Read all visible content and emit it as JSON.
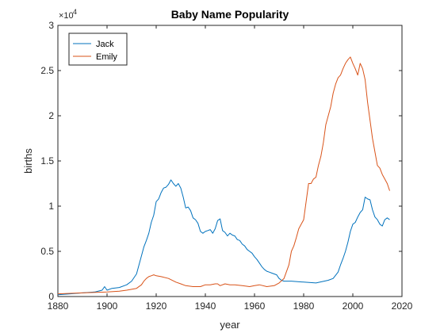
{
  "chart_data": {
    "type": "line",
    "title": "Baby Name Popularity",
    "xlabel": "year",
    "ylabel": "births",
    "xlim": [
      1880,
      2020
    ],
    "ylim": [
      0,
      30000
    ],
    "xticks": [
      1880,
      1900,
      1920,
      1940,
      1960,
      1980,
      2000,
      2020
    ],
    "yticks": [
      0,
      5000,
      10000,
      15000,
      20000,
      25000,
      30000
    ],
    "ytick_labels": [
      "0",
      "0.5",
      "1",
      "1.5",
      "2",
      "2.5",
      "3"
    ],
    "exponent_label": {
      "base": "×10",
      "power": "4"
    },
    "legend_position": "top-left",
    "grid": false,
    "series": [
      {
        "name": "Jack",
        "color": "#0072BD",
        "x": [
          1880,
          1885,
          1890,
          1895,
          1898,
          1899,
          1900,
          1902,
          1905,
          1908,
          1910,
          1912,
          1913,
          1914,
          1915,
          1916,
          1917,
          1918,
          1919,
          1920,
          1921,
          1922,
          1923,
          1924,
          1925,
          1926,
          1927,
          1928,
          1929,
          1930,
          1931,
          1932,
          1933,
          1934,
          1935,
          1936,
          1937,
          1938,
          1939,
          1940,
          1941,
          1942,
          1943,
          1944,
          1945,
          1946,
          1947,
          1948,
          1949,
          1950,
          1951,
          1952,
          1953,
          1954,
          1955,
          1956,
          1957,
          1958,
          1959,
          1960,
          1961,
          1962,
          1963,
          1964,
          1965,
          1966,
          1967,
          1968,
          1969,
          1970,
          1971,
          1972,
          1975,
          1980,
          1985,
          1990,
          1992,
          1994,
          1995,
          1996,
          1997,
          1998,
          1999,
          2000,
          2001,
          2002,
          2003,
          2004,
          2005,
          2006,
          2007,
          2008,
          2009,
          2010,
          2011,
          2012,
          2013,
          2014,
          2015
        ],
        "values": [
          200,
          300,
          400,
          500,
          700,
          1100,
          700,
          900,
          1000,
          1300,
          1700,
          2500,
          3500,
          4500,
          5500,
          6200,
          7000,
          8200,
          9000,
          10500,
          10800,
          11500,
          12000,
          12100,
          12400,
          12900,
          12500,
          12200,
          12500,
          12000,
          11000,
          9800,
          9900,
          9500,
          8700,
          8500,
          8100,
          7200,
          7000,
          7200,
          7300,
          7400,
          7000,
          7500,
          8400,
          8600,
          7300,
          7100,
          6700,
          7000,
          6800,
          6700,
          6300,
          6200,
          5800,
          5600,
          5200,
          5000,
          4800,
          4400,
          4100,
          3700,
          3300,
          3000,
          2800,
          2700,
          2600,
          2500,
          2400,
          2000,
          1800,
          1700,
          1700,
          1600,
          1500,
          1800,
          2000,
          2700,
          3500,
          4200,
          5000,
          6000,
          7200,
          8000,
          8200,
          8800,
          9300,
          9600,
          11000,
          10800,
          10700,
          9600,
          8800,
          8500,
          8000,
          7800,
          8500,
          8700,
          8500
        ]
      },
      {
        "name": "Emily",
        "color": "#D95319",
        "x": [
          1880,
          1890,
          1900,
          1905,
          1908,
          1910,
          1912,
          1914,
          1915,
          1916,
          1917,
          1918,
          1919,
          1920,
          1922,
          1925,
          1928,
          1930,
          1932,
          1935,
          1938,
          1940,
          1942,
          1944,
          1945,
          1946,
          1948,
          1950,
          1952,
          1955,
          1958,
          1960,
          1962,
          1965,
          1968,
          1970,
          1972,
          1974,
          1975,
          1976,
          1977,
          1978,
          1980,
          1981,
          1982,
          1983,
          1984,
          1985,
          1986,
          1987,
          1988,
          1989,
          1990,
          1991,
          1992,
          1993,
          1994,
          1995,
          1996,
          1997,
          1998,
          1999,
          2000,
          2001,
          2002,
          2003,
          2004,
          2005,
          2006,
          2007,
          2008,
          2009,
          2010,
          2011,
          2012,
          2013,
          2014,
          2015
        ],
        "values": [
          300,
          400,
          500,
          600,
          700,
          800,
          900,
          1300,
          1700,
          2000,
          2200,
          2300,
          2400,
          2300,
          2200,
          2000,
          1600,
          1400,
          1200,
          1100,
          1100,
          1300,
          1300,
          1400,
          1400,
          1200,
          1400,
          1300,
          1300,
          1200,
          1100,
          1200,
          1300,
          1100,
          1200,
          1500,
          2000,
          3500,
          5000,
          5600,
          6500,
          7500,
          8500,
          10500,
          12500,
          12500,
          13000,
          13200,
          14500,
          15500,
          17000,
          19000,
          20000,
          21000,
          22500,
          23500,
          24200,
          24500,
          25200,
          25800,
          26200,
          26500,
          25800,
          25200,
          24500,
          25800,
          25200,
          24000,
          21500,
          19500,
          17500,
          16000,
          14500,
          14200,
          13500,
          13000,
          12500,
          11700
        ]
      }
    ]
  }
}
